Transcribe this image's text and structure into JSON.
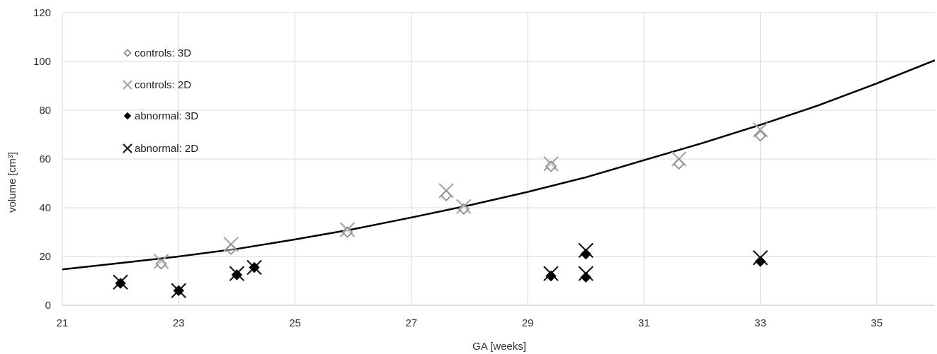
{
  "chart_data": {
    "type": "scatter",
    "title": "",
    "xlabel": "GA [weeks]",
    "ylabel": "volume [cm³]",
    "xlim": [
      21,
      36
    ],
    "ylim": [
      0,
      120
    ],
    "x_ticks": [
      21,
      23,
      25,
      27,
      29,
      31,
      33,
      35
    ],
    "y_ticks": [
      0,
      20,
      40,
      60,
      80,
      100,
      120
    ],
    "grid": true,
    "legend_position": "top-left inside",
    "series": [
      {
        "name": "controls: 3D",
        "marker": "diamond-open",
        "color": "#8c8c8c",
        "points": [
          [
            22.7,
            17
          ],
          [
            23.9,
            23
          ],
          [
            25.9,
            30
          ],
          [
            27.6,
            45
          ],
          [
            27.9,
            39.5
          ],
          [
            29.4,
            57
          ],
          [
            31.6,
            58
          ],
          [
            33.0,
            69.5
          ]
        ]
      },
      {
        "name": "controls: 2D",
        "marker": "x",
        "color": "#a6a6a6",
        "points": [
          [
            22.7,
            18
          ],
          [
            23.9,
            25
          ],
          [
            25.9,
            31
          ],
          [
            27.6,
            47
          ],
          [
            27.9,
            40.5
          ],
          [
            29.4,
            58
          ],
          [
            31.6,
            60
          ],
          [
            33.0,
            72
          ]
        ]
      },
      {
        "name": "abnormal: 3D",
        "marker": "diamond-filled",
        "color": "#000000",
        "points": [
          [
            22.0,
            9
          ],
          [
            23.0,
            6
          ],
          [
            24.0,
            12.5
          ],
          [
            24.3,
            15.5
          ],
          [
            29.4,
            12
          ],
          [
            30.0,
            21
          ],
          [
            30.0,
            11.5
          ],
          [
            33.0,
            18
          ]
        ]
      },
      {
        "name": "abnormal: 2D",
        "marker": "x",
        "color": "#1a1a1a",
        "points": [
          [
            22.0,
            9.5
          ],
          [
            23.0,
            6
          ],
          [
            24.0,
            13
          ],
          [
            24.3,
            15.5
          ],
          [
            29.4,
            13
          ],
          [
            30.0,
            22.5
          ],
          [
            30.0,
            13
          ],
          [
            33.0,
            19.5
          ]
        ]
      }
    ],
    "trend_curve": {
      "type": "fit-line",
      "color": "#000000",
      "points": [
        [
          21,
          14.7
        ],
        [
          22,
          17.3
        ],
        [
          23,
          20.0
        ],
        [
          24,
          23.1
        ],
        [
          25,
          27.0
        ],
        [
          26,
          31.2
        ],
        [
          27,
          36.0
        ],
        [
          28,
          41.0
        ],
        [
          29,
          46.5
        ],
        [
          30,
          52.5
        ],
        [
          31,
          59.5
        ],
        [
          32,
          66.5
        ],
        [
          33,
          74.0
        ],
        [
          34,
          82.0
        ],
        [
          35,
          91.0
        ],
        [
          36,
          100.5
        ]
      ]
    }
  }
}
